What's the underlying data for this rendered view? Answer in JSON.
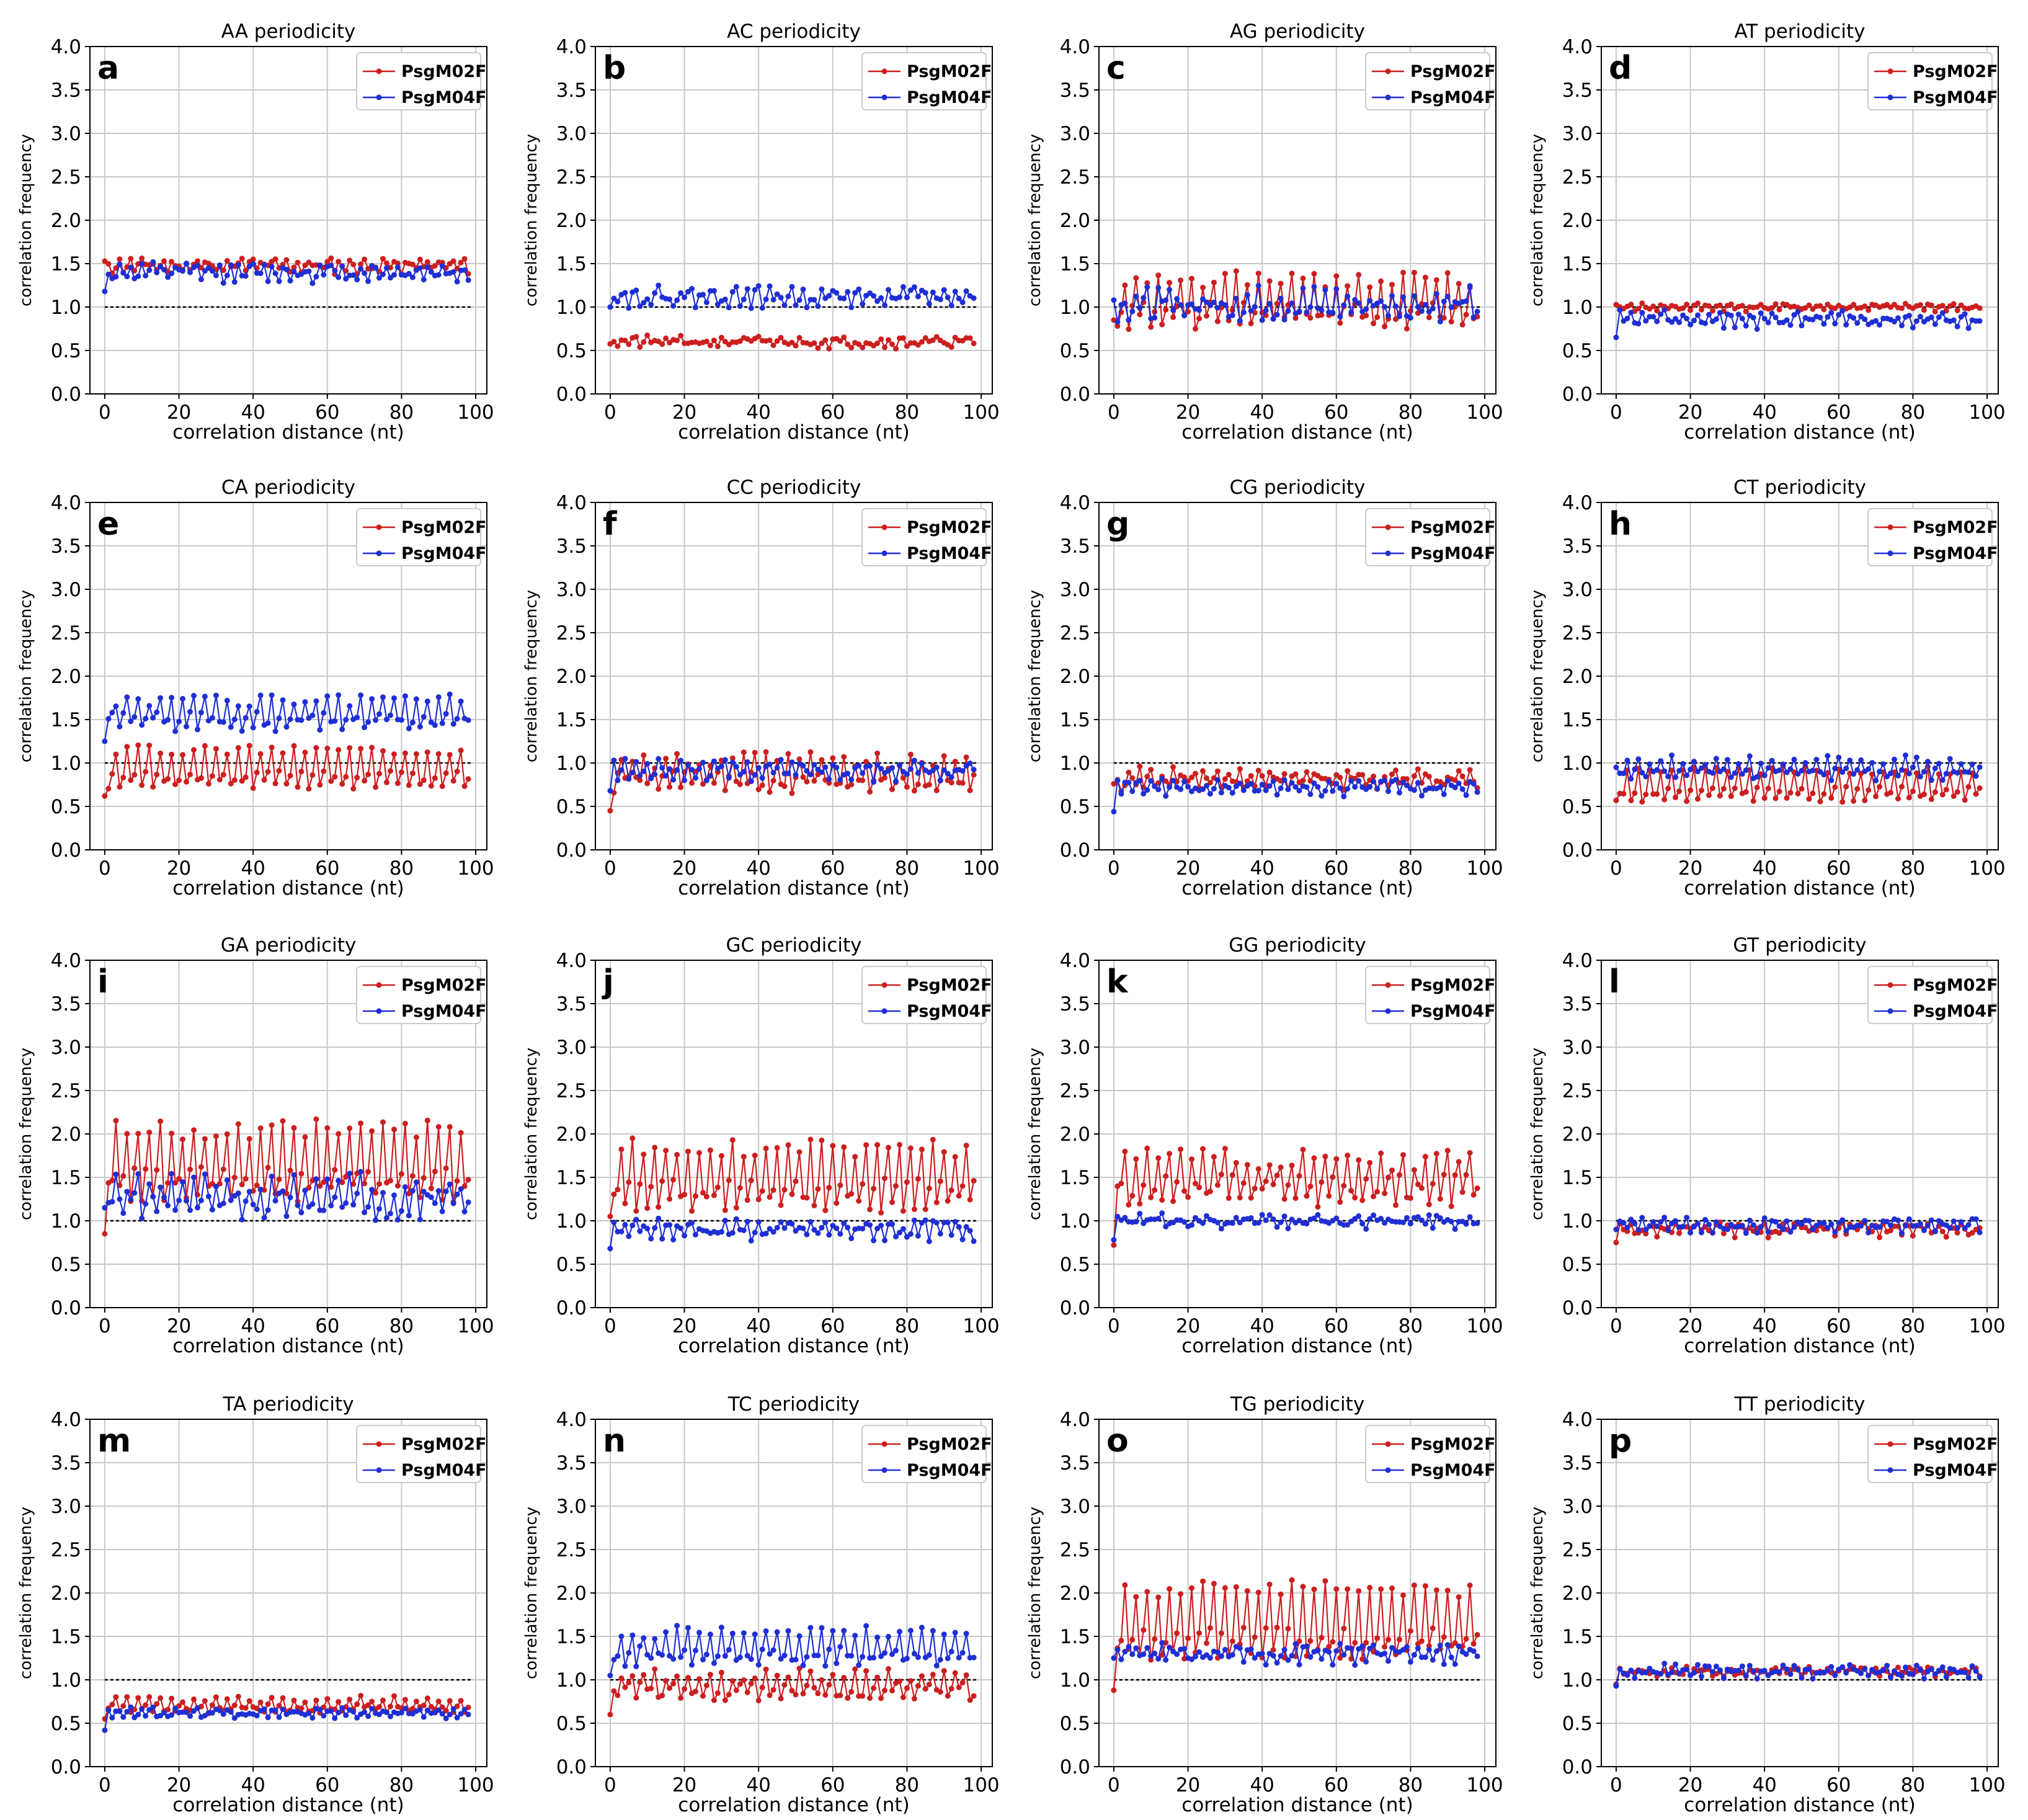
{
  "figure": {
    "colors": {
      "series_a": "#cc1f1f",
      "series_b": "#1f2fd4",
      "grid": "#c8c8c8",
      "reference": "#000000"
    }
  },
  "chart_data": [
    {
      "type": "line",
      "panel": "a",
      "title": "AA periodicity",
      "xlabel": "correlation distance (nt)",
      "ylabel": "correlation frequency",
      "xlim": [
        -4,
        103
      ],
      "ylim": [
        0,
        4
      ],
      "xticks": [
        "0",
        "20",
        "40",
        "60",
        "80",
        "100"
      ],
      "yticks": [
        "0.0",
        "0.5",
        "1.0",
        "1.5",
        "2.0",
        "2.5",
        "3.0",
        "3.5",
        "4.0"
      ],
      "reference_line": 1.0,
      "legend": [
        "PsgM02F",
        "PsgM04F"
      ],
      "series": [
        {
          "name": "PsgM02F",
          "base": 1.48,
          "amp": 0.08,
          "noise": 0.06,
          "pattern": "flat",
          "seed": 11
        },
        {
          "name": "PsgM04F",
          "base": 1.4,
          "amp": 0.08,
          "noise": 0.08,
          "pattern": "flat",
          "seed": 12,
          "start": 1.18
        }
      ]
    },
    {
      "type": "line",
      "panel": "b",
      "title": "AC periodicity",
      "xlabel": "correlation distance (nt)",
      "ylabel": "correlation frequency",
      "xlim": [
        -4,
        103
      ],
      "ylim": [
        0,
        4
      ],
      "xticks": [
        "0",
        "20",
        "40",
        "60",
        "80",
        "100"
      ],
      "yticks": [
        "0.0",
        "0.5",
        "1.0",
        "1.5",
        "2.0",
        "2.5",
        "3.0",
        "3.5",
        "4.0"
      ],
      "reference_line": 1.0,
      "legend": [
        "PsgM02F",
        "PsgM04F"
      ],
      "series": [
        {
          "name": "PsgM02F",
          "base": 0.6,
          "amp": 0.05,
          "noise": 0.05,
          "pattern": "flat",
          "seed": 21
        },
        {
          "name": "PsgM04F",
          "base": 1.12,
          "amp": 0.1,
          "noise": 0.08,
          "pattern": "flat",
          "seed": 22,
          "start": 1.0
        }
      ]
    },
    {
      "type": "line",
      "panel": "c",
      "title": "AG periodicity",
      "xlabel": "correlation distance (nt)",
      "ylabel": "correlation frequency",
      "xlim": [
        -4,
        103
      ],
      "ylim": [
        0,
        4
      ],
      "xticks": [
        "0",
        "20",
        "40",
        "60",
        "80",
        "100"
      ],
      "yticks": [
        "0.0",
        "0.5",
        "1.0",
        "1.5",
        "2.0",
        "2.5",
        "3.0",
        "3.5",
        "4.0"
      ],
      "reference_line": 1.0,
      "legend": [
        "PsgM02F",
        "PsgM04F"
      ],
      "series": [
        {
          "name": "PsgM02F",
          "base": 1.02,
          "amp": 0.3,
          "noise": 0.1,
          "pattern": "saw",
          "seed": 31,
          "start": 0.85
        },
        {
          "name": "PsgM04F",
          "base": 1.02,
          "amp": 0.12,
          "noise": 0.12,
          "pattern": "saw",
          "seed": 32,
          "start": 1.08
        }
      ]
    },
    {
      "type": "line",
      "panel": "d",
      "title": "AT periodicity",
      "xlabel": "correlation distance (nt)",
      "ylabel": "correlation frequency",
      "xlim": [
        -4,
        103
      ],
      "ylim": [
        0,
        4
      ],
      "xticks": [
        "0",
        "20",
        "40",
        "60",
        "80",
        "100"
      ],
      "yticks": [
        "0.0",
        "0.5",
        "1.0",
        "1.5",
        "2.0",
        "2.5",
        "3.0",
        "3.5",
        "4.0"
      ],
      "reference_line": 1.0,
      "legend": [
        "PsgM02F",
        "PsgM04F"
      ],
      "series": [
        {
          "name": "PsgM02F",
          "base": 1.0,
          "amp": 0.04,
          "noise": 0.03,
          "pattern": "flat",
          "seed": 41
        },
        {
          "name": "PsgM04F",
          "base": 0.86,
          "amp": 0.1,
          "noise": 0.06,
          "pattern": "flat",
          "seed": 42,
          "start": 0.65
        }
      ]
    },
    {
      "type": "line",
      "panel": "e",
      "title": "CA periodicity",
      "xlabel": "correlation distance (nt)",
      "ylabel": "correlation frequency",
      "xlim": [
        -4,
        103
      ],
      "ylim": [
        0,
        4
      ],
      "xticks": [
        "0",
        "20",
        "40",
        "60",
        "80",
        "100"
      ],
      "yticks": [
        "0.0",
        "0.5",
        "1.0",
        "1.5",
        "2.0",
        "2.5",
        "3.0",
        "3.5",
        "4.0"
      ],
      "reference_line": 1.0,
      "legend": [
        "PsgM02F",
        "PsgM04F"
      ],
      "series": [
        {
          "name": "PsgM02F",
          "base": 0.9,
          "amp": 0.25,
          "noise": 0.06,
          "pattern": "saw",
          "seed": 51,
          "start": 0.62
        },
        {
          "name": "PsgM04F",
          "base": 1.55,
          "amp": 0.18,
          "noise": 0.08,
          "pattern": "saw",
          "seed": 52,
          "start": 1.25
        }
      ]
    },
    {
      "type": "line",
      "panel": "f",
      "title": "CC periodicity",
      "xlabel": "correlation distance (nt)",
      "ylabel": "correlation frequency",
      "xlim": [
        -4,
        103
      ],
      "ylim": [
        0,
        4
      ],
      "xticks": [
        "0",
        "20",
        "40",
        "60",
        "80",
        "100"
      ],
      "yticks": [
        "0.0",
        "0.5",
        "1.0",
        "1.5",
        "2.0",
        "2.5",
        "3.0",
        "3.5",
        "4.0"
      ],
      "reference_line": 1.0,
      "legend": [
        "PsgM02F",
        "PsgM04F"
      ],
      "series": [
        {
          "name": "PsgM02F",
          "base": 0.85,
          "amp": 0.18,
          "noise": 0.1,
          "pattern": "saw",
          "seed": 61,
          "start": 0.45
        },
        {
          "name": "PsgM04F",
          "base": 0.92,
          "amp": 0.1,
          "noise": 0.08,
          "pattern": "flat",
          "seed": 62,
          "start": 0.68
        }
      ]
    },
    {
      "type": "line",
      "panel": "g",
      "title": "CG periodicity",
      "xlabel": "correlation distance (nt)",
      "ylabel": "correlation frequency",
      "xlim": [
        -4,
        103
      ],
      "ylim": [
        0,
        4
      ],
      "xticks": [
        "0",
        "20",
        "40",
        "60",
        "80",
        "100"
      ],
      "yticks": [
        "0.0",
        "0.5",
        "1.0",
        "1.5",
        "2.0",
        "2.5",
        "3.0",
        "3.5",
        "4.0"
      ],
      "reference_line": 1.0,
      "legend": [
        "PsgM02F",
        "PsgM04F"
      ],
      "series": [
        {
          "name": "PsgM02F",
          "base": 0.82,
          "amp": 0.12,
          "noise": 0.08,
          "pattern": "flat",
          "seed": 71,
          "start": 0.76
        },
        {
          "name": "PsgM04F",
          "base": 0.72,
          "amp": 0.08,
          "noise": 0.06,
          "pattern": "flat",
          "seed": 72,
          "start": 0.44
        }
      ]
    },
    {
      "type": "line",
      "panel": "h",
      "title": "CT periodicity",
      "xlabel": "correlation distance (nt)",
      "ylabel": "correlation frequency",
      "xlim": [
        -4,
        103
      ],
      "ylim": [
        0,
        4
      ],
      "xticks": [
        "0",
        "20",
        "40",
        "60",
        "80",
        "100"
      ],
      "yticks": [
        "0.0",
        "0.5",
        "1.0",
        "1.5",
        "2.0",
        "2.5",
        "3.0",
        "3.5",
        "4.0"
      ],
      "reference_line": 1.0,
      "legend": [
        "PsgM02F",
        "PsgM04F"
      ],
      "series": [
        {
          "name": "PsgM02F",
          "base": 0.72,
          "amp": 0.2,
          "noise": 0.05,
          "pattern": "saw",
          "seed": 81,
          "start": 0.57
        },
        {
          "name": "PsgM04F",
          "base": 0.92,
          "amp": 0.12,
          "noise": 0.06,
          "pattern": "saw",
          "seed": 82,
          "start": 0.95
        }
      ]
    },
    {
      "type": "line",
      "panel": "i",
      "title": "GA periodicity",
      "xlabel": "correlation distance (nt)",
      "ylabel": "correlation frequency",
      "xlim": [
        -4,
        103
      ],
      "ylim": [
        0,
        4
      ],
      "xticks": [
        "0",
        "20",
        "40",
        "60",
        "80",
        "100"
      ],
      "yticks": [
        "0.0",
        "0.5",
        "1.0",
        "1.5",
        "2.0",
        "2.5",
        "3.0",
        "3.5",
        "4.0"
      ],
      "reference_line": 1.0,
      "legend": [
        "PsgM02F",
        "PsgM04F"
      ],
      "series": [
        {
          "name": "PsgM02F",
          "base": 1.6,
          "amp": 0.45,
          "noise": 0.12,
          "pattern": "saw",
          "seed": 91,
          "start": 0.85
        },
        {
          "name": "PsgM04F",
          "base": 1.25,
          "amp": 0.18,
          "noise": 0.14,
          "pattern": "saw",
          "seed": 92,
          "start": 1.15
        }
      ]
    },
    {
      "type": "line",
      "panel": "j",
      "title": "GC periodicity",
      "xlabel": "correlation distance (nt)",
      "ylabel": "correlation frequency",
      "xlim": [
        -4,
        103
      ],
      "ylim": [
        0,
        4
      ],
      "xticks": [
        "0",
        "20",
        "40",
        "60",
        "80",
        "100"
      ],
      "yticks": [
        "0.0",
        "0.5",
        "1.0",
        "1.5",
        "2.0",
        "2.5",
        "3.0",
        "3.5",
        "4.0"
      ],
      "reference_line": 1.0,
      "legend": [
        "PsgM02F",
        "PsgM04F"
      ],
      "series": [
        {
          "name": "PsgM02F",
          "base": 1.45,
          "amp": 0.4,
          "noise": 0.12,
          "pattern": "saw",
          "seed": 101,
          "start": 1.05
        },
        {
          "name": "PsgM04F",
          "base": 0.9,
          "amp": 0.1,
          "noise": 0.08,
          "pattern": "flat",
          "seed": 102,
          "start": 0.68
        }
      ]
    },
    {
      "type": "line",
      "panel": "k",
      "title": "GG periodicity",
      "xlabel": "correlation distance (nt)",
      "ylabel": "correlation frequency",
      "xlim": [
        -4,
        103
      ],
      "ylim": [
        0,
        4
      ],
      "xticks": [
        "0",
        "20",
        "40",
        "60",
        "80",
        "100"
      ],
      "yticks": [
        "0.0",
        "0.5",
        "1.0",
        "1.5",
        "2.0",
        "2.5",
        "3.0",
        "3.5",
        "4.0"
      ],
      "reference_line": 1.0,
      "legend": [
        "PsgM02F",
        "PsgM04F"
      ],
      "series": [
        {
          "name": "PsgM02F",
          "base": 1.45,
          "amp": 0.25,
          "noise": 0.14,
          "pattern": "saw",
          "seed": 111,
          "start": 0.72
        },
        {
          "name": "PsgM04F",
          "base": 1.0,
          "amp": 0.06,
          "noise": 0.06,
          "pattern": "flat",
          "seed": 112,
          "start": 0.78
        }
      ]
    },
    {
      "type": "line",
      "panel": "l",
      "title": "GT periodicity",
      "xlabel": "correlation distance (nt)",
      "ylabel": "correlation frequency",
      "xlim": [
        -4,
        103
      ],
      "ylim": [
        0,
        4
      ],
      "xticks": [
        "0",
        "20",
        "40",
        "60",
        "80",
        "100"
      ],
      "yticks": [
        "0.0",
        "0.5",
        "1.0",
        "1.5",
        "2.0",
        "2.5",
        "3.0",
        "3.5",
        "4.0"
      ],
      "reference_line": 1.0,
      "legend": [
        "PsgM02F",
        "PsgM04F"
      ],
      "series": [
        {
          "name": "PsgM02F",
          "base": 0.9,
          "amp": 0.06,
          "noise": 0.06,
          "pattern": "flat",
          "seed": 121,
          "start": 0.75
        },
        {
          "name": "PsgM04F",
          "base": 0.95,
          "amp": 0.06,
          "noise": 0.06,
          "pattern": "flat",
          "seed": 122,
          "start": 0.9
        }
      ]
    },
    {
      "type": "line",
      "panel": "m",
      "title": "TA periodicity",
      "xlabel": "correlation distance (nt)",
      "ylabel": "correlation frequency",
      "xlim": [
        -4,
        103
      ],
      "ylim": [
        0,
        4
      ],
      "xticks": [
        "0",
        "20",
        "40",
        "60",
        "80",
        "100"
      ],
      "yticks": [
        "0.0",
        "0.5",
        "1.0",
        "1.5",
        "2.0",
        "2.5",
        "3.0",
        "3.5",
        "4.0"
      ],
      "reference_line": 1.0,
      "legend": [
        "PsgM02F",
        "PsgM04F"
      ],
      "series": [
        {
          "name": "PsgM02F",
          "base": 0.7,
          "amp": 0.08,
          "noise": 0.04,
          "pattern": "saw",
          "seed": 131,
          "start": 0.55
        },
        {
          "name": "PsgM04F",
          "base": 0.62,
          "amp": 0.05,
          "noise": 0.04,
          "pattern": "flat",
          "seed": 132,
          "start": 0.42
        }
      ]
    },
    {
      "type": "line",
      "panel": "n",
      "title": "TC periodicity",
      "xlabel": "correlation distance (nt)",
      "ylabel": "correlation frequency",
      "xlim": [
        -4,
        103
      ],
      "ylim": [
        0,
        4
      ],
      "xticks": [
        "0",
        "20",
        "40",
        "60",
        "80",
        "100"
      ],
      "yticks": [
        "0.0",
        "0.5",
        "1.0",
        "1.5",
        "2.0",
        "2.5",
        "3.0",
        "3.5",
        "4.0"
      ],
      "reference_line": 1.0,
      "legend": [
        "PsgM02F",
        "PsgM04F"
      ],
      "series": [
        {
          "name": "PsgM02F",
          "base": 0.92,
          "amp": 0.14,
          "noise": 0.08,
          "pattern": "saw",
          "seed": 141,
          "start": 0.6
        },
        {
          "name": "PsgM04F",
          "base": 1.35,
          "amp": 0.2,
          "noise": 0.08,
          "pattern": "saw",
          "seed": 142,
          "start": 1.05
        }
      ]
    },
    {
      "type": "line",
      "panel": "o",
      "title": "TG periodicity",
      "xlabel": "correlation distance (nt)",
      "ylabel": "correlation frequency",
      "xlim": [
        -4,
        103
      ],
      "ylim": [
        0,
        4
      ],
      "xticks": [
        "0",
        "20",
        "40",
        "60",
        "80",
        "100"
      ],
      "yticks": [
        "0.0",
        "0.5",
        "1.0",
        "1.5",
        "2.0",
        "2.5",
        "3.0",
        "3.5",
        "4.0"
      ],
      "reference_line": 1.0,
      "legend": [
        "PsgM02F",
        "PsgM04F"
      ],
      "series": [
        {
          "name": "PsgM02F",
          "base": 1.6,
          "amp": 0.45,
          "noise": 0.1,
          "pattern": "saw",
          "seed": 151,
          "start": 0.88
        },
        {
          "name": "PsgM04F",
          "base": 1.3,
          "amp": 0.1,
          "noise": 0.08,
          "pattern": "flat",
          "seed": 152,
          "start": 1.25
        }
      ]
    },
    {
      "type": "line",
      "panel": "p",
      "title": "TT periodicity",
      "xlabel": "correlation distance (nt)",
      "ylabel": "correlation frequency",
      "xlim": [
        -4,
        103
      ],
      "ylim": [
        0,
        4
      ],
      "xticks": [
        "0",
        "20",
        "40",
        "60",
        "80",
        "100"
      ],
      "yticks": [
        "0.0",
        "0.5",
        "1.0",
        "1.5",
        "2.0",
        "2.5",
        "3.0",
        "3.5",
        "4.0"
      ],
      "reference_line": 1.0,
      "legend": [
        "PsgM02F",
        "PsgM04F"
      ],
      "series": [
        {
          "name": "PsgM02F",
          "base": 1.1,
          "amp": 0.04,
          "noise": 0.04,
          "pattern": "flat",
          "seed": 161,
          "start": 0.95
        },
        {
          "name": "PsgM04F",
          "base": 1.1,
          "amp": 0.06,
          "noise": 0.06,
          "pattern": "flat",
          "seed": 162,
          "start": 0.93
        }
      ]
    }
  ]
}
